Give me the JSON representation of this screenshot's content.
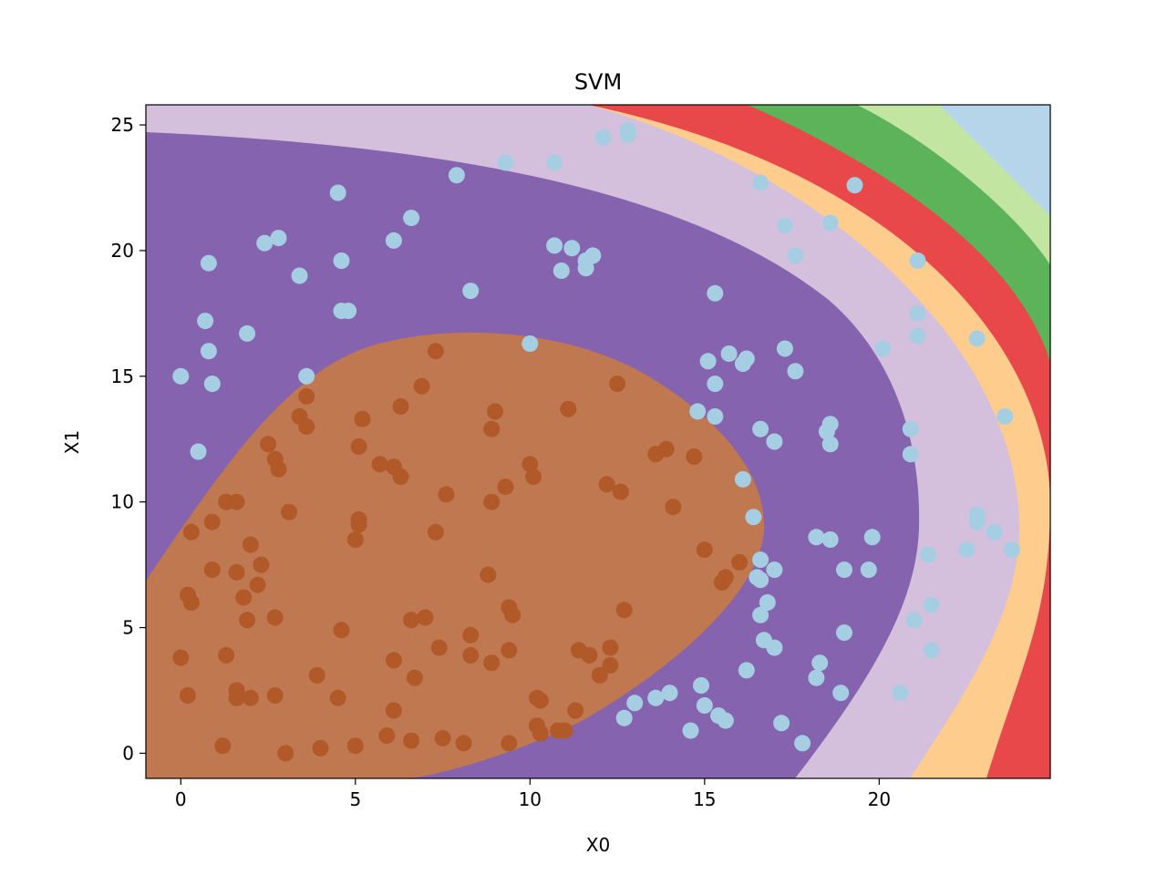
{
  "chart_data": {
    "type": "scatter",
    "title": "SVM",
    "xlabel": "X0",
    "ylabel": "X1",
    "xlim": [
      -1,
      24.9
    ],
    "ylim": [
      -1,
      25.8
    ],
    "xticks": [
      0,
      5,
      10,
      15,
      20
    ],
    "yticks": [
      0,
      5,
      10,
      15,
      20,
      25
    ],
    "grid": false,
    "legend": "none",
    "background_regions": {
      "description_colors": [
        "#bf7850",
        "#8663ae",
        "#d4bfdd",
        "#fecd8e",
        "#e8484a",
        "#5cb35a",
        "#c2e6a1",
        "#b7d5ea"
      ],
      "center": [
        8.5,
        8.5
      ]
    },
    "series": [
      {
        "color": "#b15928",
        "points": [
          [
            0.3,
            8.8
          ],
          [
            0.9,
            9.2
          ],
          [
            1.3,
            10.0
          ],
          [
            1.6,
            10.0
          ],
          [
            0.2,
            6.3
          ],
          [
            0.3,
            6.0
          ],
          [
            0.9,
            7.3
          ],
          [
            1.6,
            7.2
          ],
          [
            2.0,
            8.3
          ],
          [
            2.3,
            7.5
          ],
          [
            2.2,
            6.7
          ],
          [
            1.8,
            6.2
          ],
          [
            1.9,
            5.3
          ],
          [
            2.7,
            5.4
          ],
          [
            0.0,
            3.8
          ],
          [
            0.2,
            2.3
          ],
          [
            1.3,
            3.9
          ],
          [
            1.6,
            2.5
          ],
          [
            1.6,
            2.2
          ],
          [
            2.0,
            2.2
          ],
          [
            2.7,
            2.3
          ],
          [
            1.2,
            0.3
          ],
          [
            3.0,
            0.0
          ],
          [
            3.1,
            9.6
          ],
          [
            2.5,
            12.3
          ],
          [
            2.7,
            11.7
          ],
          [
            2.8,
            11.3
          ],
          [
            3.4,
            13.4
          ],
          [
            3.6,
            13.0
          ],
          [
            3.6,
            14.2
          ],
          [
            3.9,
            3.1
          ],
          [
            4.0,
            0.2
          ],
          [
            4.5,
            2.2
          ],
          [
            4.6,
            4.9
          ],
          [
            5.0,
            0.3
          ],
          [
            5.0,
            8.5
          ],
          [
            5.1,
            9.1
          ],
          [
            5.1,
            9.3
          ],
          [
            5.1,
            12.2
          ],
          [
            5.2,
            13.3
          ],
          [
            5.7,
            11.5
          ],
          [
            6.1,
            11.4
          ],
          [
            6.3,
            11.0
          ],
          [
            6.3,
            13.8
          ],
          [
            5.9,
            0.7
          ],
          [
            6.1,
            1.7
          ],
          [
            6.1,
            3.7
          ],
          [
            6.6,
            5.3
          ],
          [
            6.6,
            0.5
          ],
          [
            6.7,
            3.0
          ],
          [
            6.9,
            14.6
          ],
          [
            7.0,
            5.4
          ],
          [
            7.3,
            8.8
          ],
          [
            7.3,
            16.0
          ],
          [
            7.4,
            4.2
          ],
          [
            7.5,
            0.6
          ],
          [
            7.6,
            10.3
          ],
          [
            8.1,
            0.4
          ],
          [
            8.3,
            3.9
          ],
          [
            8.3,
            4.7
          ],
          [
            8.8,
            7.1
          ],
          [
            8.9,
            3.6
          ],
          [
            8.9,
            10.0
          ],
          [
            8.9,
            12.9
          ],
          [
            9.0,
            13.6
          ],
          [
            9.3,
            10.6
          ],
          [
            9.4,
            5.8
          ],
          [
            9.4,
            4.1
          ],
          [
            9.4,
            0.4
          ],
          [
            9.5,
            5.5
          ],
          [
            10.0,
            11.5
          ],
          [
            10.1,
            11.0
          ],
          [
            10.2,
            2.2
          ],
          [
            10.2,
            1.1
          ],
          [
            10.3,
            2.1
          ],
          [
            10.3,
            0.8
          ],
          [
            10.8,
            0.9
          ],
          [
            11.0,
            0.9
          ],
          [
            11.1,
            13.7
          ],
          [
            11.3,
            1.7
          ],
          [
            11.4,
            4.1
          ],
          [
            11.7,
            3.9
          ],
          [
            12.0,
            3.1
          ],
          [
            12.2,
            10.7
          ],
          [
            12.3,
            4.2
          ],
          [
            12.3,
            3.5
          ],
          [
            12.5,
            14.7
          ],
          [
            12.6,
            10.4
          ],
          [
            12.7,
            5.7
          ],
          [
            13.6,
            11.9
          ],
          [
            13.9,
            12.1
          ],
          [
            14.1,
            9.8
          ],
          [
            14.7,
            11.8
          ],
          [
            15.0,
            8.1
          ],
          [
            15.5,
            6.8
          ],
          [
            15.6,
            7.0
          ],
          [
            16.0,
            7.6
          ]
        ]
      },
      {
        "color": "#a6cee3",
        "points": [
          [
            0.0,
            15.0
          ],
          [
            0.5,
            12.0
          ],
          [
            0.7,
            17.2
          ],
          [
            0.8,
            16.0
          ],
          [
            0.8,
            19.5
          ],
          [
            0.9,
            14.7
          ],
          [
            1.9,
            16.7
          ],
          [
            2.4,
            20.3
          ],
          [
            2.8,
            20.5
          ],
          [
            3.4,
            19.0
          ],
          [
            3.6,
            15.0
          ],
          [
            4.5,
            22.3
          ],
          [
            4.6,
            19.6
          ],
          [
            4.6,
            17.6
          ],
          [
            4.8,
            17.6
          ],
          [
            6.1,
            20.4
          ],
          [
            6.6,
            21.3
          ],
          [
            7.9,
            23.0
          ],
          [
            8.3,
            18.4
          ],
          [
            9.3,
            23.5
          ],
          [
            10.0,
            16.3
          ],
          [
            10.7,
            23.5
          ],
          [
            10.7,
            20.2
          ],
          [
            10.9,
            19.2
          ],
          [
            11.2,
            20.1
          ],
          [
            11.6,
            19.3
          ],
          [
            11.6,
            19.6
          ],
          [
            11.8,
            19.8
          ],
          [
            12.1,
            24.5
          ],
          [
            12.8,
            24.8
          ],
          [
            12.8,
            24.6
          ],
          [
            12.7,
            1.4
          ],
          [
            13.0,
            2.0
          ],
          [
            13.6,
            2.2
          ],
          [
            14.0,
            2.4
          ],
          [
            14.6,
            0.9
          ],
          [
            14.8,
            13.6
          ],
          [
            14.9,
            2.7
          ],
          [
            15.0,
            1.9
          ],
          [
            15.1,
            15.6
          ],
          [
            15.3,
            13.4
          ],
          [
            15.3,
            14.7
          ],
          [
            15.3,
            18.3
          ],
          [
            15.4,
            1.5
          ],
          [
            15.6,
            1.3
          ],
          [
            15.7,
            15.9
          ],
          [
            16.1,
            15.5
          ],
          [
            16.2,
            15.7
          ],
          [
            16.1,
            10.9
          ],
          [
            16.2,
            3.3
          ],
          [
            16.4,
            9.4
          ],
          [
            16.5,
            7.0
          ],
          [
            16.6,
            7.7
          ],
          [
            16.6,
            6.9
          ],
          [
            16.6,
            12.9
          ],
          [
            16.6,
            5.5
          ],
          [
            16.6,
            22.7
          ],
          [
            16.7,
            4.5
          ],
          [
            16.8,
            6.0
          ],
          [
            17.0,
            7.3
          ],
          [
            17.0,
            4.2
          ],
          [
            17.0,
            12.4
          ],
          [
            17.3,
            16.1
          ],
          [
            17.3,
            21.0
          ],
          [
            17.2,
            1.2
          ],
          [
            17.6,
            19.8
          ],
          [
            17.6,
            15.2
          ],
          [
            17.8,
            0.4
          ],
          [
            18.2,
            8.6
          ],
          [
            18.2,
            3.0
          ],
          [
            18.3,
            3.6
          ],
          [
            18.5,
            12.8
          ],
          [
            18.6,
            21.1
          ],
          [
            18.6,
            13.1
          ],
          [
            18.6,
            12.3
          ],
          [
            18.6,
            8.5
          ],
          [
            18.9,
            2.4
          ],
          [
            19.0,
            7.3
          ],
          [
            19.0,
            4.8
          ],
          [
            19.3,
            22.6
          ],
          [
            19.7,
            7.3
          ],
          [
            19.8,
            8.6
          ],
          [
            20.1,
            16.1
          ],
          [
            20.6,
            2.4
          ],
          [
            20.9,
            12.9
          ],
          [
            20.9,
            11.9
          ],
          [
            21.0,
            5.3
          ],
          [
            21.1,
            17.5
          ],
          [
            21.1,
            16.6
          ],
          [
            21.1,
            19.6
          ],
          [
            21.4,
            7.9
          ],
          [
            21.5,
            4.1
          ],
          [
            21.5,
            5.9
          ],
          [
            22.5,
            8.1
          ],
          [
            22.8,
            16.5
          ],
          [
            22.8,
            9.5
          ],
          [
            22.8,
            9.2
          ],
          [
            23.3,
            8.8
          ],
          [
            23.6,
            13.4
          ],
          [
            23.8,
            8.1
          ]
        ]
      }
    ]
  }
}
